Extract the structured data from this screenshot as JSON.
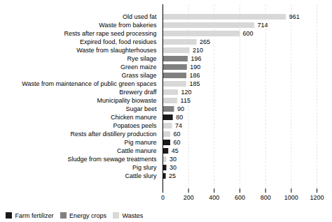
{
  "chart_data": {
    "type": "bar",
    "orientation": "horizontal",
    "categories": [
      "Cattle slury",
      "Pig slury",
      "Sludge from sewage treatments",
      "Cattle manure",
      "Pig manure",
      "Rests after distillery production",
      "Popatoes peels",
      "Chicken manure",
      "Sugar beet",
      "Municipality biowaste",
      "Brewery draff",
      "Waste from maintenance of public green spaces",
      "Grass silage",
      "Green maize",
      "Rye silage",
      "Waste from slaughterhouses",
      "Expired food, food residues",
      "Rests after rape seed processing",
      "Waste from bakeries",
      "Old used fat"
    ],
    "values": [
      25,
      30,
      30,
      45,
      60,
      60,
      74,
      80,
      90,
      115,
      120,
      185,
      186,
      190,
      196,
      210,
      265,
      600,
      714,
      961
    ],
    "colors": [
      "#1a1a1a",
      "#1a1a1a",
      "#d8d8d8",
      "#1a1a1a",
      "#1a1a1a",
      "#d8d8d8",
      "#d8d8d8",
      "#1a1a1a",
      "#808080",
      "#d8d8d8",
      "#d8d8d8",
      "#d8d8d8",
      "#808080",
      "#808080",
      "#808080",
      "#d8d8d8",
      "#d8d8d8",
      "#d8d8d8",
      "#d8d8d8",
      "#d8d8d8"
    ],
    "xlim": [
      0,
      1200
    ],
    "xticks": [
      0,
      200,
      400,
      600,
      800,
      1000,
      1200
    ],
    "grid": true,
    "data_labels": true,
    "legend": "bottom left",
    "legend_labels": [
      "Farm fertilizer",
      "Energy crops",
      "Wastes"
    ],
    "legend_colors": [
      "#1a1a1a",
      "#808080",
      "#d8d8d8"
    ]
  }
}
